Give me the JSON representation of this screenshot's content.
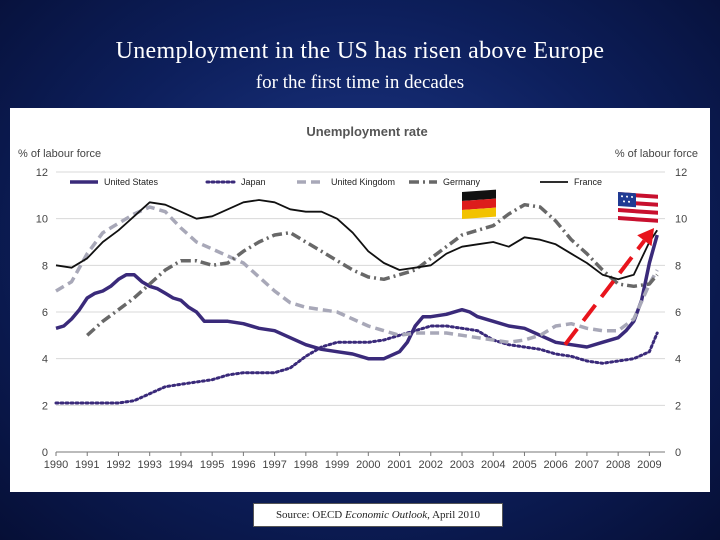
{
  "slide": {
    "title": "Unemployment in the US has risen above Europe",
    "subtitle": "for the first time in decades",
    "source_prefix": "Source: OECD ",
    "source_italic": "Economic Outlook",
    "source_suffix": ", April 2010"
  },
  "colors": {
    "us": "#3a2a7a",
    "japan": "#3a2a7a",
    "uk": "#a8a8b8",
    "germany": "#686868",
    "france": "#111111",
    "arrow": "#e8141c"
  },
  "chart_data": {
    "type": "line",
    "title": "Unemployment rate",
    "ylabel_left": "% of labour force",
    "ylabel_right": "% of labour force",
    "ylim": [
      0,
      12
    ],
    "yticks": [
      "0",
      "2",
      "4",
      "6",
      "8",
      "10",
      "12"
    ],
    "xlim": [
      1990,
      2009.5
    ],
    "xticks": [
      "1990",
      "1991",
      "1992",
      "1993",
      "1994",
      "1995",
      "1996",
      "1997",
      "1998",
      "1999",
      "2000",
      "2001",
      "2002",
      "2003",
      "2004",
      "2005",
      "2006",
      "2007",
      "2008",
      "2009"
    ],
    "legend_position": "top",
    "series": [
      {
        "name": "United States",
        "style": "solid-thick",
        "x": [
          1990.0,
          1990.25,
          1990.5,
          1990.75,
          1991.0,
          1991.25,
          1991.5,
          1991.75,
          1992.0,
          1992.25,
          1992.5,
          1992.75,
          1993.0,
          1993.25,
          1993.5,
          1993.75,
          1994.0,
          1994.25,
          1994.5,
          1994.75,
          1995.0,
          1995.5,
          1996.0,
          1996.5,
          1997.0,
          1997.5,
          1998.0,
          1998.5,
          1999.0,
          1999.5,
          2000.0,
          2000.5,
          2001.0,
          2001.25,
          2001.5,
          2001.75,
          2002.0,
          2002.5,
          2003.0,
          2003.25,
          2003.5,
          2004.0,
          2004.5,
          2005.0,
          2005.5,
          2006.0,
          2006.5,
          2007.0,
          2007.5,
          2008.0,
          2008.25,
          2008.5,
          2008.75,
          2009.0,
          2009.25
        ],
        "values": [
          5.3,
          5.4,
          5.7,
          6.1,
          6.6,
          6.8,
          6.9,
          7.1,
          7.4,
          7.6,
          7.6,
          7.3,
          7.1,
          7.0,
          6.8,
          6.6,
          6.5,
          6.2,
          6.0,
          5.6,
          5.6,
          5.6,
          5.5,
          5.3,
          5.2,
          4.9,
          4.6,
          4.4,
          4.3,
          4.2,
          4.0,
          4.0,
          4.3,
          4.7,
          5.4,
          5.8,
          5.8,
          5.9,
          6.1,
          6.0,
          5.8,
          5.6,
          5.4,
          5.3,
          5.0,
          4.7,
          4.6,
          4.5,
          4.7,
          4.9,
          5.2,
          5.6,
          6.5,
          8.1,
          9.3
        ]
      },
      {
        "name": "Japan",
        "style": "dotted",
        "x": [
          1990.0,
          1990.5,
          1991.0,
          1991.5,
          1992.0,
          1992.5,
          1993.0,
          1993.5,
          1994.0,
          1994.5,
          1995.0,
          1995.5,
          1996.0,
          1996.5,
          1997.0,
          1997.5,
          1998.0,
          1998.5,
          1999.0,
          1999.5,
          2000.0,
          2000.5,
          2001.0,
          2001.5,
          2002.0,
          2002.5,
          2003.0,
          2003.5,
          2004.0,
          2004.5,
          2005.0,
          2005.5,
          2006.0,
          2006.5,
          2007.0,
          2007.5,
          2008.0,
          2008.5,
          2009.0,
          2009.25
        ],
        "values": [
          2.1,
          2.1,
          2.1,
          2.1,
          2.1,
          2.2,
          2.5,
          2.8,
          2.9,
          3.0,
          3.1,
          3.3,
          3.4,
          3.4,
          3.4,
          3.6,
          4.1,
          4.5,
          4.7,
          4.7,
          4.7,
          4.8,
          5.0,
          5.2,
          5.4,
          5.4,
          5.3,
          5.2,
          4.8,
          4.6,
          4.5,
          4.4,
          4.2,
          4.1,
          3.9,
          3.8,
          3.9,
          4.0,
          4.3,
          5.1
        ]
      },
      {
        "name": "United Kingdom",
        "style": "dashed",
        "x": [
          1990.0,
          1990.5,
          1991.0,
          1991.5,
          1992.0,
          1992.5,
          1993.0,
          1993.5,
          1994.0,
          1994.5,
          1995.0,
          1995.5,
          1996.0,
          1996.5,
          1997.0,
          1997.5,
          1998.0,
          1998.5,
          1999.0,
          1999.5,
          2000.0,
          2000.5,
          2001.0,
          2001.5,
          2002.0,
          2002.5,
          2003.0,
          2003.5,
          2004.0,
          2004.5,
          2005.0,
          2005.5,
          2006.0,
          2006.5,
          2007.0,
          2007.5,
          2008.0,
          2008.5,
          2009.0,
          2009.25
        ],
        "values": [
          6.9,
          7.3,
          8.5,
          9.4,
          9.8,
          10.2,
          10.5,
          10.3,
          9.6,
          9.0,
          8.7,
          8.4,
          8.1,
          7.5,
          6.9,
          6.4,
          6.2,
          6.1,
          6.0,
          5.7,
          5.4,
          5.2,
          5.0,
          5.1,
          5.1,
          5.1,
          5.0,
          4.9,
          4.8,
          4.7,
          4.8,
          5.0,
          5.4,
          5.5,
          5.3,
          5.2,
          5.2,
          5.7,
          7.2,
          7.8
        ]
      },
      {
        "name": "Germany",
        "style": "dash-dot",
        "x": [
          1991.0,
          1991.5,
          1992.0,
          1992.5,
          1993.0,
          1993.5,
          1994.0,
          1994.5,
          1995.0,
          1995.5,
          1996.0,
          1996.5,
          1997.0,
          1997.5,
          1998.0,
          1998.5,
          1999.0,
          1999.5,
          2000.0,
          2000.5,
          2001.0,
          2001.5,
          2002.0,
          2002.5,
          2003.0,
          2003.5,
          2004.0,
          2004.5,
          2005.0,
          2005.5,
          2006.0,
          2006.5,
          2007.0,
          2007.5,
          2008.0,
          2008.5,
          2009.0,
          2009.25
        ],
        "values": [
          5.0,
          5.6,
          6.1,
          6.6,
          7.2,
          7.8,
          8.2,
          8.2,
          8.0,
          8.1,
          8.6,
          9.0,
          9.3,
          9.4,
          9.0,
          8.6,
          8.2,
          7.8,
          7.5,
          7.4,
          7.6,
          7.8,
          8.3,
          8.8,
          9.3,
          9.5,
          9.7,
          10.2,
          10.6,
          10.5,
          9.9,
          9.1,
          8.5,
          7.8,
          7.2,
          7.1,
          7.2,
          7.6
        ]
      },
      {
        "name": "France",
        "style": "solid-thin",
        "x": [
          1990.0,
          1990.5,
          1991.0,
          1991.5,
          1992.0,
          1992.5,
          1993.0,
          1993.5,
          1994.0,
          1994.5,
          1995.0,
          1995.5,
          1996.0,
          1996.5,
          1997.0,
          1997.5,
          1998.0,
          1998.5,
          1999.0,
          1999.5,
          2000.0,
          2000.5,
          2001.0,
          2001.5,
          2002.0,
          2002.5,
          2003.0,
          2003.5,
          2004.0,
          2004.5,
          2005.0,
          2005.5,
          2006.0,
          2006.5,
          2007.0,
          2007.5,
          2008.0,
          2008.5,
          2009.0,
          2009.25
        ],
        "values": [
          8.0,
          7.9,
          8.3,
          9.0,
          9.5,
          10.1,
          10.7,
          10.6,
          10.3,
          10.0,
          10.1,
          10.4,
          10.7,
          10.8,
          10.7,
          10.4,
          10.3,
          10.3,
          10.0,
          9.4,
          8.6,
          8.1,
          7.8,
          7.9,
          8.0,
          8.5,
          8.8,
          8.9,
          9.0,
          8.8,
          9.2,
          9.1,
          8.9,
          8.5,
          8.1,
          7.6,
          7.4,
          7.6,
          9.0,
          9.5
        ]
      }
    ]
  }
}
